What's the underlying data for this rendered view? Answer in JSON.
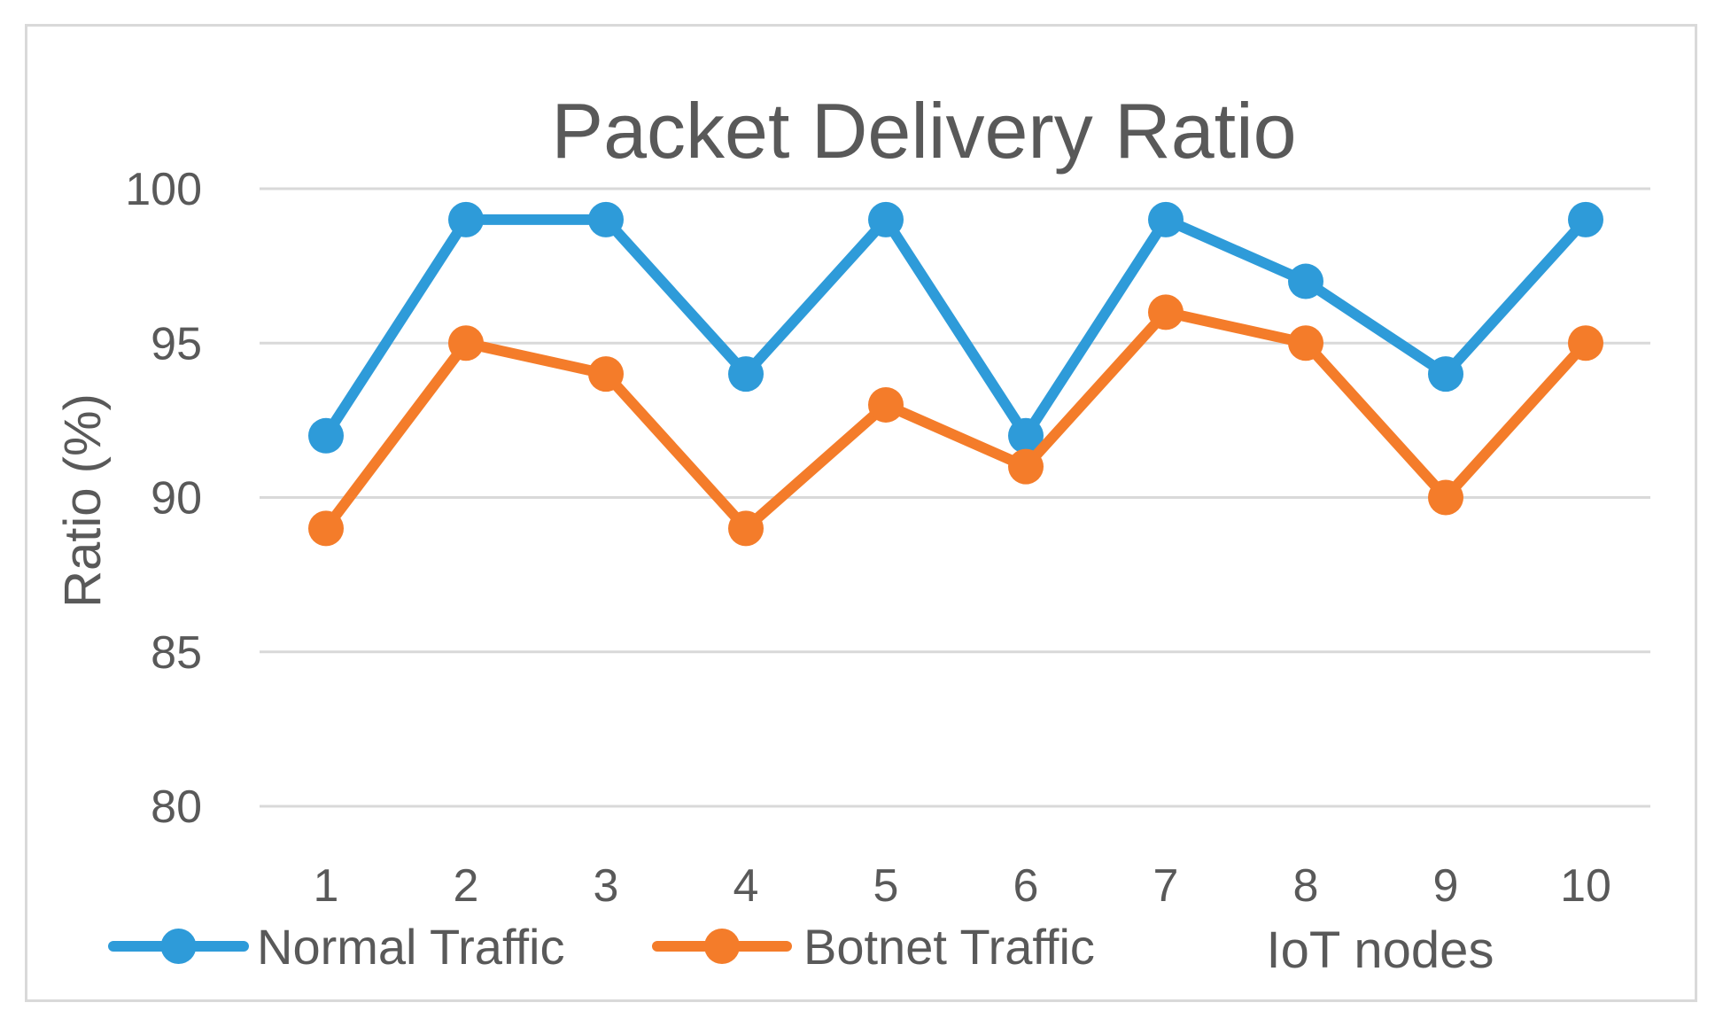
{
  "chart_data": {
    "type": "line",
    "title": "Packet Delivery Ratio",
    "xlabel": "IoT nodes",
    "ylabel": "Ratio (%)",
    "categories": [
      "1",
      "2",
      "3",
      "4",
      "5",
      "6",
      "7",
      "8",
      "9",
      "10"
    ],
    "y_ticks": [
      "80",
      "85",
      "90",
      "95",
      "100"
    ],
    "ylim": [
      80,
      100
    ],
    "grid": true,
    "legend_position": "bottom-left",
    "series": [
      {
        "name": "Normal Traffic",
        "color": "#2E9BD9",
        "values": [
          92,
          99,
          99,
          94,
          99,
          92,
          99,
          97,
          94,
          99
        ]
      },
      {
        "name": "Botnet Traffic",
        "color": "#F47C2A",
        "values": [
          89,
          95,
          94,
          89,
          93,
          91,
          96,
          95,
          90,
          95
        ]
      }
    ]
  }
}
